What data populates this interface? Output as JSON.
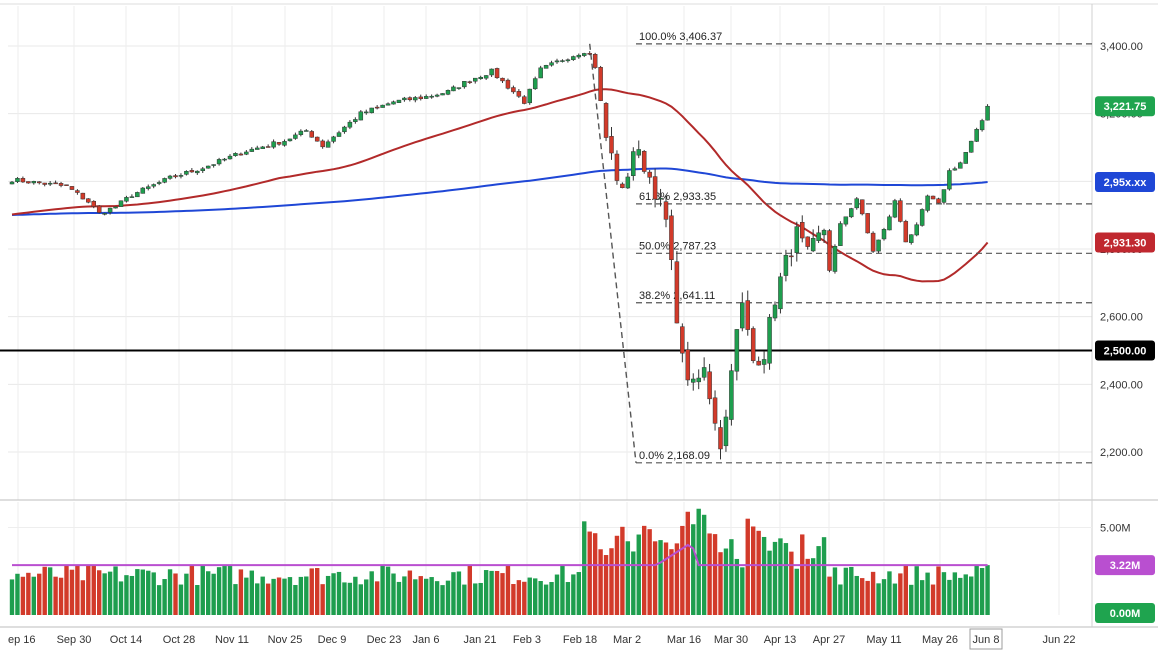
{
  "colors": {
    "up": "#1e9e4e",
    "down": "#d23a2a",
    "sma_fast": "#b22a2a",
    "sma_slow": "#1f47d6",
    "volume_avg": "#b94fd0",
    "fib": "#555555",
    "support": "#000000",
    "badge_price": "#1fa44f",
    "badge_sma_fast": "#c0282f",
    "badge_sma_slow": "#1f47d6",
    "badge_support": "#000000",
    "badge_volume": "#1fa44f"
  },
  "chart_data": [
    {
      "type": "candlestick",
      "x_ticks": [
        "ep 16",
        "Sep 30",
        "Oct 14",
        "Oct 28",
        "Nov 11",
        "Nov 25",
        "Dec 9",
        "Dec 23",
        "Jan 6",
        "Jan 21",
        "Feb 3",
        "Feb 18",
        "Mar 2",
        "Mar 16",
        "Mar 30",
        "Apr 13",
        "Apr 27",
        "May 11",
        "May 26",
        "Jun 8",
        "Jun 22"
      ],
      "y_ticks": [
        "2,200.00",
        "2,400.00",
        "2,600.00",
        "2,800.00",
        "3,000.00",
        "3,200.00",
        "3,400.00"
      ],
      "ylim": [
        2130,
        3450
      ],
      "close_anchors": [
        {
          "t": 0,
          "v": 3005
        },
        {
          "t": 10,
          "v": 2985
        },
        {
          "t": 14,
          "v": 2940
        },
        {
          "t": 16,
          "v": 2905
        },
        {
          "t": 19,
          "v": 2925
        },
        {
          "t": 22,
          "v": 2960
        },
        {
          "t": 29,
          "v": 3010
        },
        {
          "t": 35,
          "v": 3040
        },
        {
          "t": 43,
          "v": 3090
        },
        {
          "t": 50,
          "v": 3120
        },
        {
          "t": 54,
          "v": 3150
        },
        {
          "t": 57,
          "v": 3105
        },
        {
          "t": 61,
          "v": 3160
        },
        {
          "t": 64,
          "v": 3200
        },
        {
          "t": 70,
          "v": 3235
        },
        {
          "t": 76,
          "v": 3250
        },
        {
          "t": 80,
          "v": 3265
        },
        {
          "t": 84,
          "v": 3300
        },
        {
          "t": 88,
          "v": 3325
        },
        {
          "t": 90,
          "v": 3295
        },
        {
          "t": 94,
          "v": 3235
        },
        {
          "t": 97,
          "v": 3330
        },
        {
          "t": 101,
          "v": 3360
        },
        {
          "t": 105,
          "v": 3385
        },
        {
          "t": 106,
          "v": 3375
        },
        {
          "t": 107,
          "v": 3340
        },
        {
          "t": 109,
          "v": 3130
        },
        {
          "t": 112,
          "v": 2960
        },
        {
          "t": 114,
          "v": 3095
        },
        {
          "t": 116,
          "v": 3050
        },
        {
          "t": 118,
          "v": 2975
        },
        {
          "t": 120,
          "v": 2880
        },
        {
          "t": 121,
          "v": 2745
        },
        {
          "t": 123,
          "v": 2470
        },
        {
          "t": 125,
          "v": 2390
        },
        {
          "t": 127,
          "v": 2440
        },
        {
          "t": 129,
          "v": 2300
        },
        {
          "t": 130,
          "v": 2225
        },
        {
          "t": 131,
          "v": 2300
        },
        {
          "t": 132,
          "v": 2465
        },
        {
          "t": 134,
          "v": 2630
        },
        {
          "t": 136,
          "v": 2470
        },
        {
          "t": 138,
          "v": 2495
        },
        {
          "t": 140,
          "v": 2655
        },
        {
          "t": 142,
          "v": 2760
        },
        {
          "t": 144,
          "v": 2845
        },
        {
          "t": 146,
          "v": 2780
        },
        {
          "t": 149,
          "v": 2860
        },
        {
          "t": 150,
          "v": 2740
        },
        {
          "t": 152,
          "v": 2870
        },
        {
          "t": 155,
          "v": 2950
        },
        {
          "t": 158,
          "v": 2795
        },
        {
          "t": 160,
          "v": 2855
        },
        {
          "t": 162,
          "v": 2940
        },
        {
          "t": 164,
          "v": 2825
        },
        {
          "t": 166,
          "v": 2865
        },
        {
          "t": 168,
          "v": 2955
        },
        {
          "t": 170,
          "v": 2930
        },
        {
          "t": 172,
          "v": 3030
        },
        {
          "t": 174,
          "v": 3055
        },
        {
          "t": 176,
          "v": 3115
        },
        {
          "t": 178,
          "v": 3180
        },
        {
          "t": 179,
          "v": 3222
        }
      ],
      "start_date": "2019-09-11",
      "last_date": "2020-06-05",
      "total_sessions": 180,
      "sma_fast": {
        "period": 50,
        "last_value": "2,931.30"
      },
      "sma_slow": {
        "period": 200,
        "last_value": "2,95x.xx"
      },
      "last_price": "3,221.75",
      "support": {
        "level": 2500,
        "label": "2,500.00"
      },
      "fibonacci": {
        "anchors": {
          "high": 3406.37,
          "low": 2168.09
        },
        "levels": [
          {
            "label": "100.0% 3,406.37",
            "value": 3406.37
          },
          {
            "label": "61.8% 2,933.35",
            "value": 2933.35
          },
          {
            "label": "50.0% 2,787.23",
            "value": 2787.23
          },
          {
            "label": "38.2% 2,641.11",
            "value": 2641.11
          },
          {
            "label": "0.0% 2,168.09",
            "value": 2168.09
          }
        ]
      }
    },
    {
      "type": "bar",
      "name": "volume",
      "y_ticks": [
        "5.00M"
      ],
      "ylim": [
        0,
        6.0
      ],
      "avg_label": "3.22M",
      "zero_label": "0.00M"
    }
  ]
}
